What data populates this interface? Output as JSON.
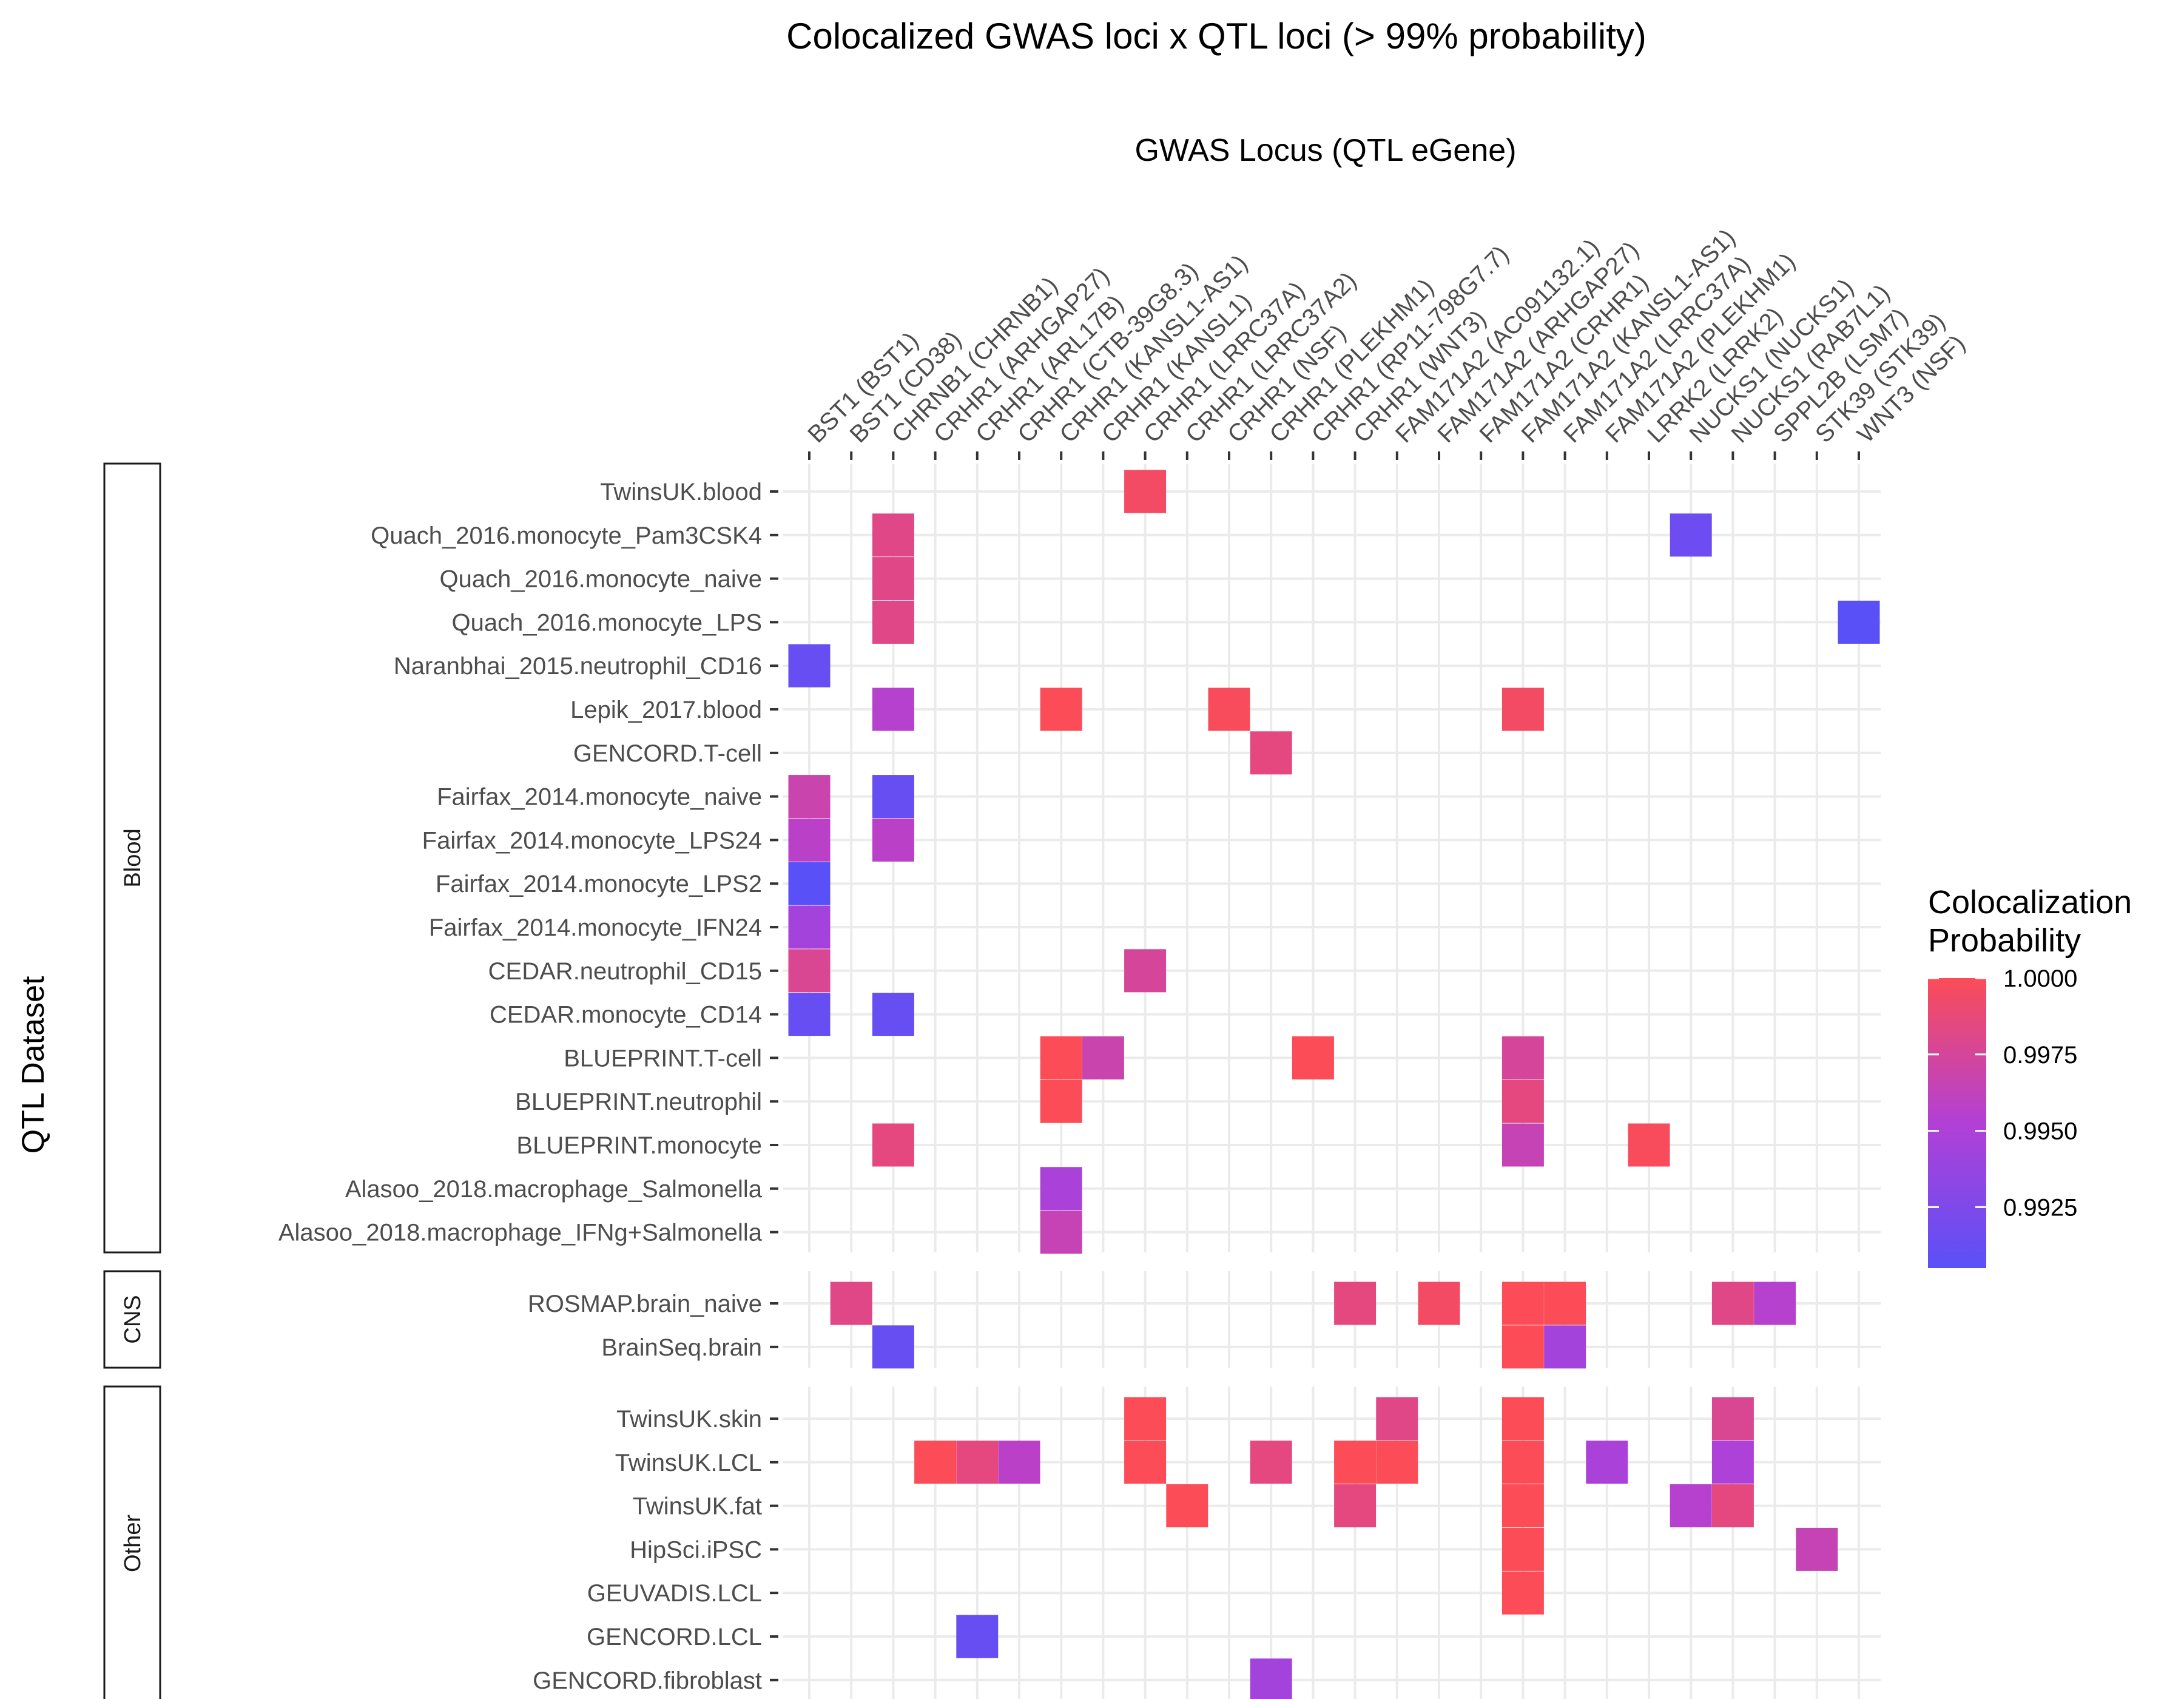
{
  "chart_data": {
    "type": "heatmap",
    "title": "Colocalized GWAS loci x QTL loci (> 99% probability)",
    "xlabel": "GWAS Locus (QTL eGene)",
    "ylabel": "QTL Dataset",
    "x_position": "top",
    "grid": true,
    "legend": {
      "title": [
        "Colocalization",
        "Probability"
      ],
      "placement": "right",
      "ticks": [
        "1.0000",
        "0.9975",
        "0.9950",
        "0.9925"
      ],
      "tick_values": [
        1.0,
        0.9975,
        0.995,
        0.9925
      ],
      "range": [
        0.9905,
        1.0
      ],
      "color_low": "#5a50f8",
      "color_mid": "#b240d6",
      "color_high": "#fb4c57"
    },
    "columns": [
      "BST1 (BST1)",
      "BST1 (CD38)",
      "CHRNB1 (CHRNB1)",
      "CRHR1 (ARHGAP27)",
      "CRHR1 (ARL17B)",
      "CRHR1 (CTB-39G8.3)",
      "CRHR1 (KANSL1-AS1)",
      "CRHR1 (KANSL1)",
      "CRHR1 (LRRC37A)",
      "CRHR1 (LRRC37A2)",
      "CRHR1 (NSF)",
      "CRHR1 (PLEKHM1)",
      "CRHR1 (RP11-798G7.7)",
      "CRHR1 (WNT3)",
      "FAM171A2 (AC091132.1)",
      "FAM171A2 (ARHGAP27)",
      "FAM171A2 (CRHR1)",
      "FAM171A2 (KANSL1-AS1)",
      "FAM171A2 (LRRC37A)",
      "FAM171A2 (PLEKHM1)",
      "LRRK2 (LRRK2)",
      "NUCKS1 (NUCKS1)",
      "NUCKS1 (RAB7L1)",
      "SPPL2B (LSM7)",
      "STK39 (STK39)",
      "WNT3 (NSF)"
    ],
    "panels": [
      {
        "name": "Blood",
        "rows": [
          "TwinsUK.blood",
          "Quach_2016.monocyte_Pam3CSK4",
          "Quach_2016.monocyte_naive",
          "Quach_2016.monocyte_LPS",
          "Naranbhai_2015.neutrophil_CD16",
          "Lepik_2017.blood",
          "GENCORD.T-cell",
          "Fairfax_2014.monocyte_naive",
          "Fairfax_2014.monocyte_LPS24",
          "Fairfax_2014.monocyte_LPS2",
          "Fairfax_2014.monocyte_IFN24",
          "CEDAR.neutrophil_CD15",
          "CEDAR.monocyte_CD14",
          "BLUEPRINT.T-cell",
          "BLUEPRINT.neutrophil",
          "BLUEPRINT.monocyte",
          "Alasoo_2018.macrophage_Salmonella",
          "Alasoo_2018.macrophage_IFNg+Salmonella"
        ],
        "cells": [
          {
            "row": "TwinsUK.blood",
            "col": "CRHR1 (LRRC37A)",
            "value": 0.9995
          },
          {
            "row": "Quach_2016.monocyte_Pam3CSK4",
            "col": "CHRNB1 (CHRNB1)",
            "value": 0.9982
          },
          {
            "row": "Quach_2016.monocyte_Pam3CSK4",
            "col": "NUCKS1 (NUCKS1)",
            "value": 0.9915
          },
          {
            "row": "Quach_2016.monocyte_naive",
            "col": "CHRNB1 (CHRNB1)",
            "value": 0.9982
          },
          {
            "row": "Quach_2016.monocyte_LPS",
            "col": "CHRNB1 (CHRNB1)",
            "value": 0.9982
          },
          {
            "row": "Quach_2016.monocyte_LPS",
            "col": "WNT3 (NSF)",
            "value": 0.9905
          },
          {
            "row": "Naranbhai_2015.neutrophil_CD16",
            "col": "BST1 (BST1)",
            "value": 0.9912
          },
          {
            "row": "Lepik_2017.blood",
            "col": "CHRNB1 (CHRNB1)",
            "value": 0.9955
          },
          {
            "row": "Lepik_2017.blood",
            "col": "CRHR1 (KANSL1-AS1)",
            "value": 1.0
          },
          {
            "row": "Lepik_2017.blood",
            "col": "CRHR1 (NSF)",
            "value": 0.9998
          },
          {
            "row": "Lepik_2017.blood",
            "col": "FAM171A2 (KANSL1-AS1)",
            "value": 0.9995
          },
          {
            "row": "GENCORD.T-cell",
            "col": "CRHR1 (PLEKHM1)",
            "value": 0.9985
          },
          {
            "row": "Fairfax_2014.monocyte_naive",
            "col": "BST1 (BST1)",
            "value": 0.9968
          },
          {
            "row": "Fairfax_2014.monocyte_naive",
            "col": "CHRNB1 (CHRNB1)",
            "value": 0.9912
          },
          {
            "row": "Fairfax_2014.monocyte_LPS24",
            "col": "BST1 (BST1)",
            "value": 0.9958
          },
          {
            "row": "Fairfax_2014.monocyte_LPS24",
            "col": "CHRNB1 (CHRNB1)",
            "value": 0.9958
          },
          {
            "row": "Fairfax_2014.monocyte_LPS2",
            "col": "BST1 (BST1)",
            "value": 0.9905
          },
          {
            "row": "Fairfax_2014.monocyte_IFN24",
            "col": "BST1 (BST1)",
            "value": 0.9945
          },
          {
            "row": "CEDAR.neutrophil_CD15",
            "col": "BST1 (BST1)",
            "value": 0.9978
          },
          {
            "row": "CEDAR.neutrophil_CD15",
            "col": "CRHR1 (LRRC37A)",
            "value": 0.9975
          },
          {
            "row": "CEDAR.monocyte_CD14",
            "col": "BST1 (BST1)",
            "value": 0.9912
          },
          {
            "row": "CEDAR.monocyte_CD14",
            "col": "CHRNB1 (CHRNB1)",
            "value": 0.9912
          },
          {
            "row": "BLUEPRINT.T-cell",
            "col": "CRHR1 (KANSL1-AS1)",
            "value": 1.0
          },
          {
            "row": "BLUEPRINT.T-cell",
            "col": "CRHR1 (KANSL1)",
            "value": 0.9968
          },
          {
            "row": "BLUEPRINT.T-cell",
            "col": "CRHR1 (RP11-798G7.7)",
            "value": 1.0
          },
          {
            "row": "BLUEPRINT.T-cell",
            "col": "FAM171A2 (KANSL1-AS1)",
            "value": 0.9975
          },
          {
            "row": "BLUEPRINT.neutrophil",
            "col": "CRHR1 (KANSL1-AS1)",
            "value": 1.0
          },
          {
            "row": "BLUEPRINT.neutrophil",
            "col": "FAM171A2 (KANSL1-AS1)",
            "value": 0.9985
          },
          {
            "row": "BLUEPRINT.monocyte",
            "col": "CHRNB1 (CHRNB1)",
            "value": 0.9985
          },
          {
            "row": "BLUEPRINT.monocyte",
            "col": "FAM171A2 (KANSL1-AS1)",
            "value": 0.9965
          },
          {
            "row": "BLUEPRINT.monocyte",
            "col": "LRRK2 (LRRK2)",
            "value": 0.9998
          },
          {
            "row": "Alasoo_2018.macrophage_Salmonella",
            "col": "CRHR1 (KANSL1-AS1)",
            "value": 0.9948
          },
          {
            "row": "Alasoo_2018.macrophage_IFNg+Salmonella",
            "col": "CRHR1 (KANSL1-AS1)",
            "value": 0.9965
          }
        ]
      },
      {
        "name": "CNS",
        "rows": [
          "ROSMAP.brain_naive",
          "BrainSeq.brain"
        ],
        "cells": [
          {
            "row": "ROSMAP.brain_naive",
            "col": "BST1 (CD38)",
            "value": 0.9982
          },
          {
            "row": "ROSMAP.brain_naive",
            "col": "CRHR1 (WNT3)",
            "value": 0.9985
          },
          {
            "row": "ROSMAP.brain_naive",
            "col": "FAM171A2 (ARHGAP27)",
            "value": 0.9995
          },
          {
            "row": "ROSMAP.brain_naive",
            "col": "FAM171A2 (KANSL1-AS1)",
            "value": 1.0
          },
          {
            "row": "ROSMAP.brain_naive",
            "col": "FAM171A2 (LRRC37A)",
            "value": 1.0
          },
          {
            "row": "ROSMAP.brain_naive",
            "col": "NUCKS1 (RAB7L1)",
            "value": 0.9982
          },
          {
            "row": "ROSMAP.brain_naive",
            "col": "SPPL2B (LSM7)",
            "value": 0.9955
          },
          {
            "row": "BrainSeq.brain",
            "col": "CHRNB1 (CHRNB1)",
            "value": 0.9912
          },
          {
            "row": "BrainSeq.brain",
            "col": "FAM171A2 (KANSL1-AS1)",
            "value": 1.0
          },
          {
            "row": "BrainSeq.brain",
            "col": "FAM171A2 (LRRC37A)",
            "value": 0.9945
          }
        ]
      },
      {
        "name": "Other",
        "rows": [
          "TwinsUK.skin",
          "TwinsUK.LCL",
          "TwinsUK.fat",
          "HipSci.iPSC",
          "GEUVADIS.LCL",
          "GENCORD.LCL",
          "GENCORD.fibroblast"
        ],
        "cells": [
          {
            "row": "TwinsUK.skin",
            "col": "CRHR1 (LRRC37A)",
            "value": 1.0
          },
          {
            "row": "TwinsUK.skin",
            "col": "FAM171A2 (AC091132.1)",
            "value": 0.9982
          },
          {
            "row": "TwinsUK.skin",
            "col": "FAM171A2 (KANSL1-AS1)",
            "value": 1.0
          },
          {
            "row": "TwinsUK.skin",
            "col": "NUCKS1 (RAB7L1)",
            "value": 0.9978
          },
          {
            "row": "TwinsUK.LCL",
            "col": "CRHR1 (ARHGAP27)",
            "value": 1.0
          },
          {
            "row": "TwinsUK.LCL",
            "col": "CRHR1 (ARL17B)",
            "value": 0.9985
          },
          {
            "row": "TwinsUK.LCL",
            "col": "CRHR1 (CTB-39G8.3)",
            "value": 0.9958
          },
          {
            "row": "TwinsUK.LCL",
            "col": "CRHR1 (LRRC37A)",
            "value": 1.0
          },
          {
            "row": "TwinsUK.LCL",
            "col": "CRHR1 (PLEKHM1)",
            "value": 0.9985
          },
          {
            "row": "TwinsUK.LCL",
            "col": "FAM171A2 (AC091132.1)",
            "value": 1.0
          },
          {
            "row": "TwinsUK.LCL",
            "col": "CRHR1 (WNT3)",
            "value": 1.0
          },
          {
            "row": "TwinsUK.LCL",
            "col": "FAM171A2 (KANSL1-AS1)",
            "value": 1.0
          },
          {
            "row": "TwinsUK.LCL",
            "col": "FAM171A2 (PLEKHM1)",
            "value": 0.9948
          },
          {
            "row": "TwinsUK.LCL",
            "col": "NUCKS1 (RAB7L1)",
            "value": 0.995
          },
          {
            "row": "TwinsUK.fat",
            "col": "CRHR1 (LRRC37A2)",
            "value": 1.0
          },
          {
            "row": "TwinsUK.fat",
            "col": "CRHR1 (WNT3)",
            "value": 0.9985
          },
          {
            "row": "TwinsUK.fat",
            "col": "FAM171A2 (KANSL1-AS1)",
            "value": 1.0
          },
          {
            "row": "TwinsUK.fat",
            "col": "NUCKS1 (NUCKS1)",
            "value": 0.9955
          },
          {
            "row": "TwinsUK.fat",
            "col": "NUCKS1 (RAB7L1)",
            "value": 0.9985
          },
          {
            "row": "HipSci.iPSC",
            "col": "FAM171A2 (KANSL1-AS1)",
            "value": 1.0
          },
          {
            "row": "HipSci.iPSC",
            "col": "STK39 (STK39)",
            "value": 0.9965
          },
          {
            "row": "GEUVADIS.LCL",
            "col": "FAM171A2 (KANSL1-AS1)",
            "value": 1.0
          },
          {
            "row": "GENCORD.LCL",
            "col": "CRHR1 (ARL17B)",
            "value": 0.9912
          },
          {
            "row": "GENCORD.fibroblast",
            "col": "CRHR1 (PLEKHM1)",
            "value": 0.9945
          }
        ]
      }
    ]
  }
}
